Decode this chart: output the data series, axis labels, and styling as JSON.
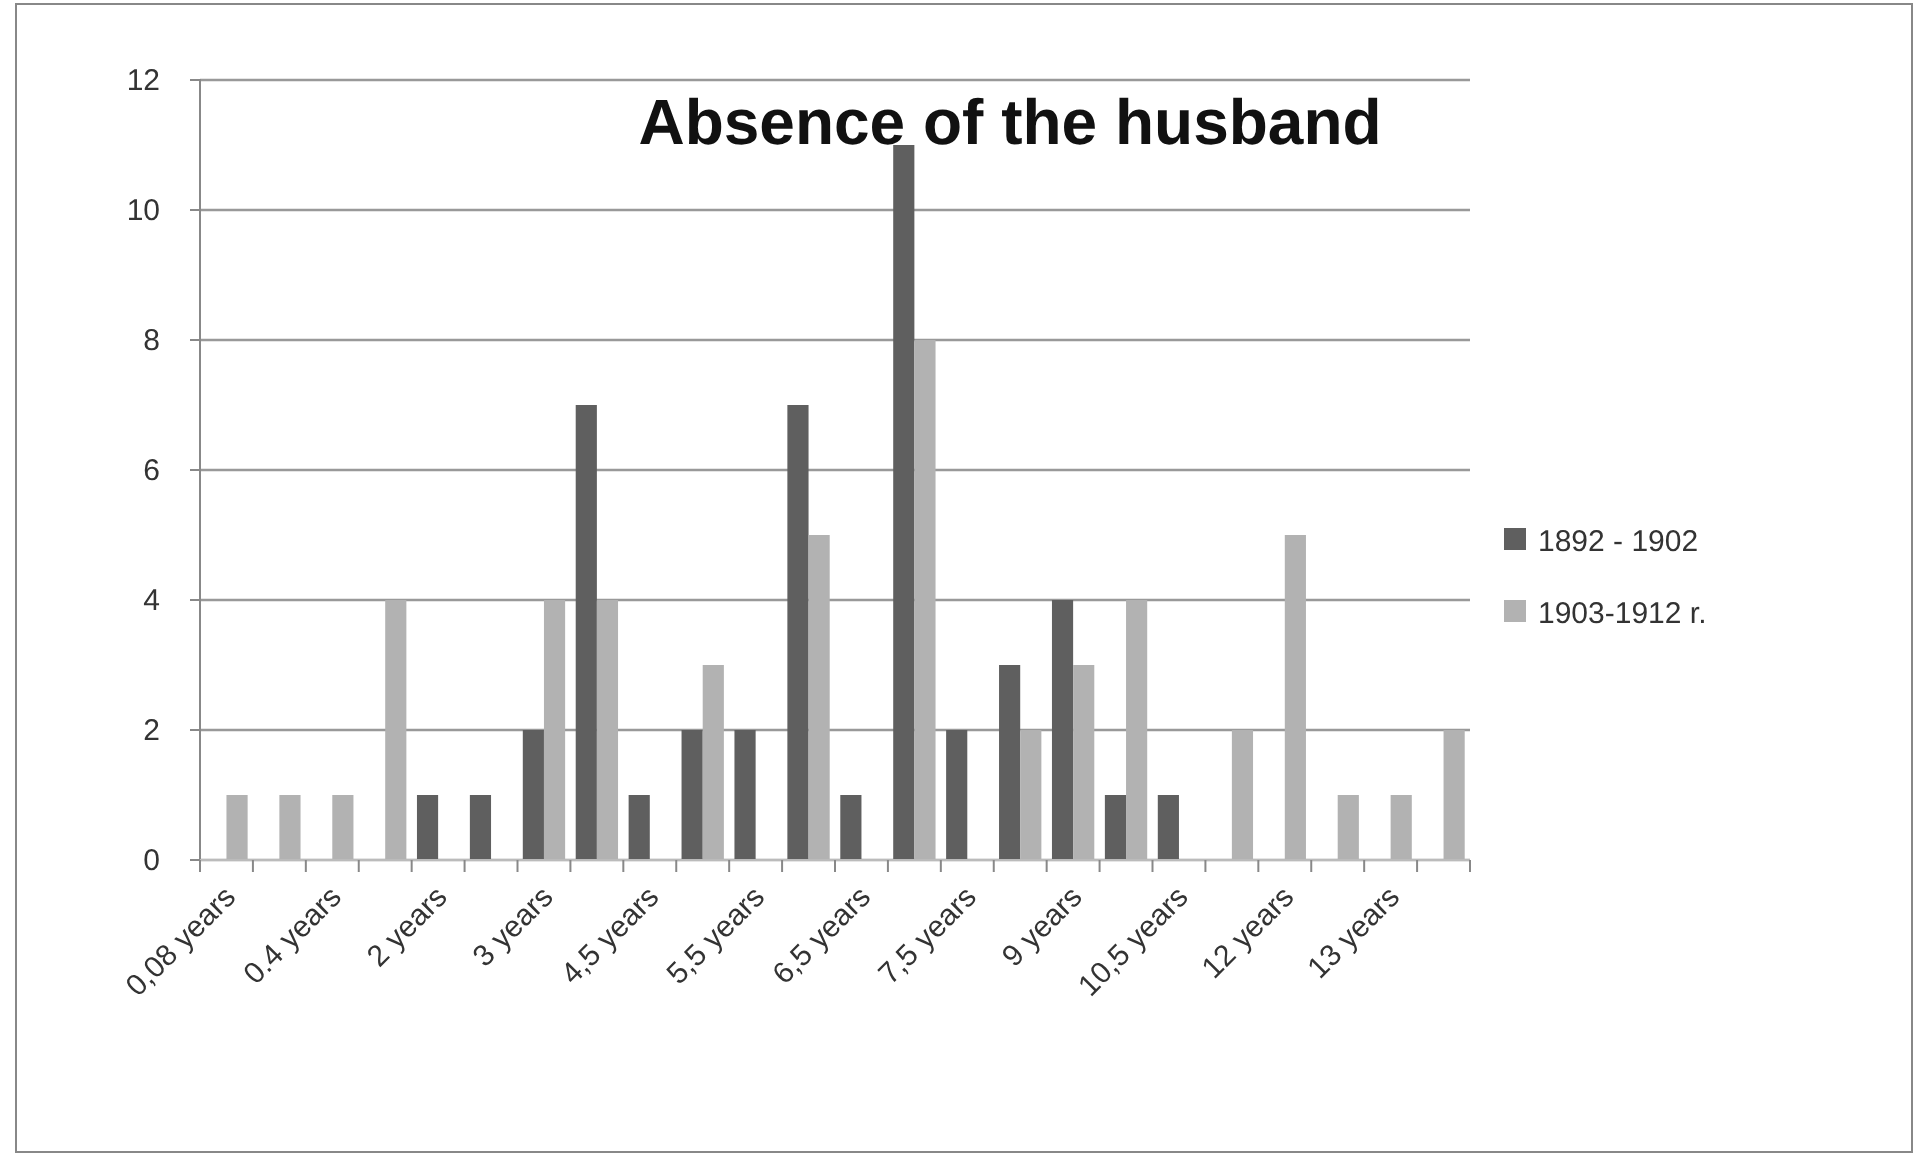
{
  "chart_data": {
    "type": "bar",
    "title": "Absence  of the husband",
    "categories": [
      "0,08 years",
      null,
      "0.4 years",
      null,
      "2 years",
      null,
      "3 years",
      null,
      "4,5 years",
      null,
      "5,5 years",
      null,
      "6,5 years",
      null,
      "7,5 years",
      null,
      "9 years",
      null,
      "10,5 years",
      null,
      "12 years",
      null,
      "13 years",
      null
    ],
    "series": [
      {
        "name": "1892 - 1902",
        "color": "#5f5f5f",
        "values": [
          0,
          0,
          0,
          0,
          1,
          1,
          2,
          7,
          1,
          2,
          2,
          7,
          1,
          11,
          2,
          3,
          4,
          1,
          1,
          0,
          0,
          0,
          0,
          0
        ]
      },
      {
        "name": "1903-1912 r.",
        "color": "#b2b2b2",
        "values": [
          1,
          1,
          1,
          4,
          0,
          0,
          4,
          4,
          0,
          3,
          0,
          5,
          0,
          8,
          0,
          2,
          3,
          4,
          0,
          2,
          5,
          1,
          1,
          2
        ]
      }
    ],
    "ylim": [
      0,
      12
    ],
    "yticks": [
      0,
      2,
      4,
      6,
      8,
      10,
      12
    ],
    "grid": "y",
    "legend": "right"
  }
}
